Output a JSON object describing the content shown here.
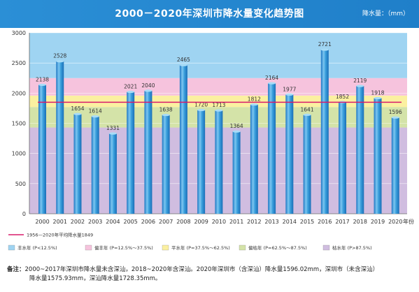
{
  "header": {
    "title": "2000－2020年深圳市降水量变化趋势图",
    "unit": "降水量：（mm）"
  },
  "colors": {
    "header_bg": "#2b8fd6",
    "band_feng": "#9fd4f2",
    "band_pianfeng": "#f6c3dd",
    "band_ping": "#fbf0a0",
    "band_piank": "#d4e3a8",
    "band_ku": "#d0bde0",
    "bar": "#3a9fdc",
    "avg_line": "#d81b6b"
  },
  "chart_data": {
    "type": "bar",
    "categories": [
      "2000",
      "2001",
      "2002",
      "2003",
      "2004",
      "2005",
      "2006",
      "2007",
      "2008",
      "2009",
      "2010",
      "2011",
      "2012",
      "2013",
      "2014",
      "2015",
      "2016",
      "2017",
      "2018",
      "2019",
      "2020"
    ],
    "values": [
      2138,
      2528,
      1654,
      1614,
      1331,
      2021,
      2040,
      1638,
      2465,
      1720,
      1713,
      1364,
      1812,
      2164,
      1977,
      1641,
      2721,
      1852,
      2119,
      1918,
      1596
    ],
    "x_unit": "年份",
    "ylim": [
      0,
      3000
    ],
    "yticks": [
      0,
      500,
      1000,
      1500,
      2000,
      2500,
      3000
    ],
    "average": {
      "value": 1849,
      "label": "1956—2020年平均降水量1849"
    },
    "bands": [
      {
        "name": "枯水年",
        "desc": "(P>87.5%)",
        "from": 0,
        "to": 1430,
        "color": "#d0bde0"
      },
      {
        "name": "偏枯年",
        "desc": "(P=62.5%～87.5%)",
        "from": 1430,
        "to": 1770,
        "color": "#d4e3a8"
      },
      {
        "name": "平水年",
        "desc": "(P=37.5%～62.5%)",
        "from": 1770,
        "to": 1960,
        "color": "#fbf0a0"
      },
      {
        "name": "偏丰年",
        "desc": "(P=12.5%～37.5%)",
        "from": 1960,
        "to": 2250,
        "color": "#f6c3dd"
      },
      {
        "name": "丰水年",
        "desc": "(P<12.5%)",
        "from": 2250,
        "to": 3000,
        "color": "#9fd4f2"
      }
    ],
    "legend_order": [
      "丰水年",
      "偏丰年",
      "平水年",
      "偏枯年",
      "枯水年"
    ],
    "grid": true
  },
  "footnote": {
    "label": "备注：",
    "line1": "2000~2017年深圳市降水量未含深汕，2018~2020年含深汕。2020年深圳市（含深汕）降水量1596.02mm，深圳市（未含深汕）",
    "line2": "降水量1575.93mm，深汕降水量1728.35mm。"
  }
}
